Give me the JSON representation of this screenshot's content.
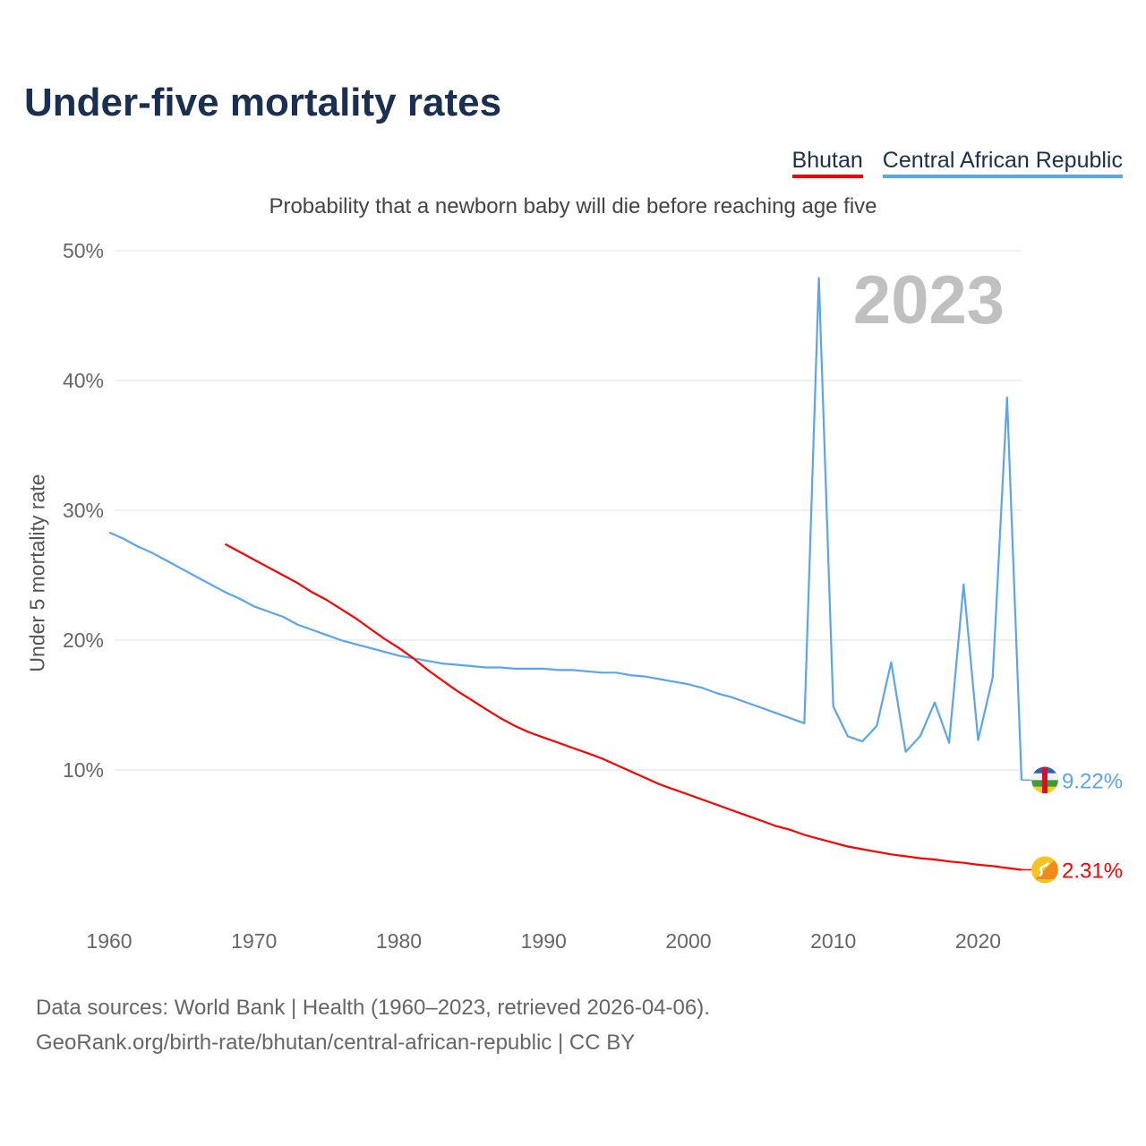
{
  "title": "Under-five mortality rates",
  "subtitle": "Probability that a newborn baby will die before reaching age five",
  "legend": [
    "Bhutan",
    "Central African Republic"
  ],
  "footer": {
    "line1": "Data sources: World Bank | Health (1960–2023, retrieved 2026-04-06).",
    "line2": "GeoRank.org/birth-rate/bhutan/central-african-republic | CC BY"
  },
  "chart_data": {
    "type": "line",
    "title": "Under-five mortality rates",
    "ylabel": "Under 5 mortality rate",
    "xlabel": "",
    "year_label": "2023",
    "xlim": [
      1960,
      2023
    ],
    "ylim": [
      0,
      50
    ],
    "x_ticks": [
      1960,
      1970,
      1980,
      1990,
      2000,
      2010,
      2020
    ],
    "x_tick_labels": [
      "1960",
      "1970",
      "1980",
      "1990",
      "2000",
      "2010",
      "2020"
    ],
    "y_ticks": [
      10,
      20,
      30,
      40,
      50
    ],
    "y_tick_labels": [
      "10%",
      "20%",
      "30%",
      "40%",
      "50%"
    ],
    "grid": true,
    "legend_position": "top-right",
    "series": [
      {
        "name": "Bhutan",
        "color": "#ff0000",
        "start_year": 1968,
        "end_label": "2.31%",
        "flag_icon": "bhutan-flag-icon",
        "values": [
          27.4,
          26.8,
          26.2,
          25.6,
          25.0,
          24.4,
          23.7,
          23.1,
          22.4,
          21.7,
          20.9,
          20.1,
          19.4,
          18.6,
          17.7,
          16.9,
          16.1,
          15.4,
          14.7,
          14.0,
          13.4,
          12.9,
          12.5,
          12.1,
          11.7,
          11.3,
          10.9,
          10.4,
          9.9,
          9.4,
          8.9,
          8.5,
          8.1,
          7.7,
          7.3,
          6.9,
          6.5,
          6.1,
          5.7,
          5.4,
          5.0,
          4.7,
          4.4,
          4.1,
          3.9,
          3.7,
          3.5,
          3.35,
          3.2,
          3.1,
          2.95,
          2.85,
          2.7,
          2.6,
          2.45,
          2.31
        ]
      },
      {
        "name": "Central African Republic",
        "color": "#5aa5ec",
        "start_year": 1960,
        "end_label": "9.22%",
        "flag_icon": "central-african-republic-flag-icon",
        "values": [
          28.3,
          27.8,
          27.2,
          26.7,
          26.1,
          25.5,
          24.9,
          24.3,
          23.7,
          23.2,
          22.6,
          22.2,
          21.8,
          21.2,
          20.8,
          20.4,
          20.0,
          19.7,
          19.4,
          19.1,
          18.8,
          18.6,
          18.4,
          18.2,
          18.1,
          18.0,
          17.9,
          17.9,
          17.8,
          17.8,
          17.8,
          17.7,
          17.7,
          17.6,
          17.5,
          17.5,
          17.3,
          17.2,
          17.0,
          16.8,
          16.6,
          16.3,
          15.9,
          15.6,
          15.2,
          14.8,
          14.4,
          14.0,
          13.6,
          47.9,
          14.9,
          12.6,
          12.2,
          13.4,
          18.3,
          11.4,
          12.6,
          15.2,
          12.1,
          24.3,
          12.3,
          17.1,
          38.7,
          9.22
        ]
      }
    ]
  }
}
